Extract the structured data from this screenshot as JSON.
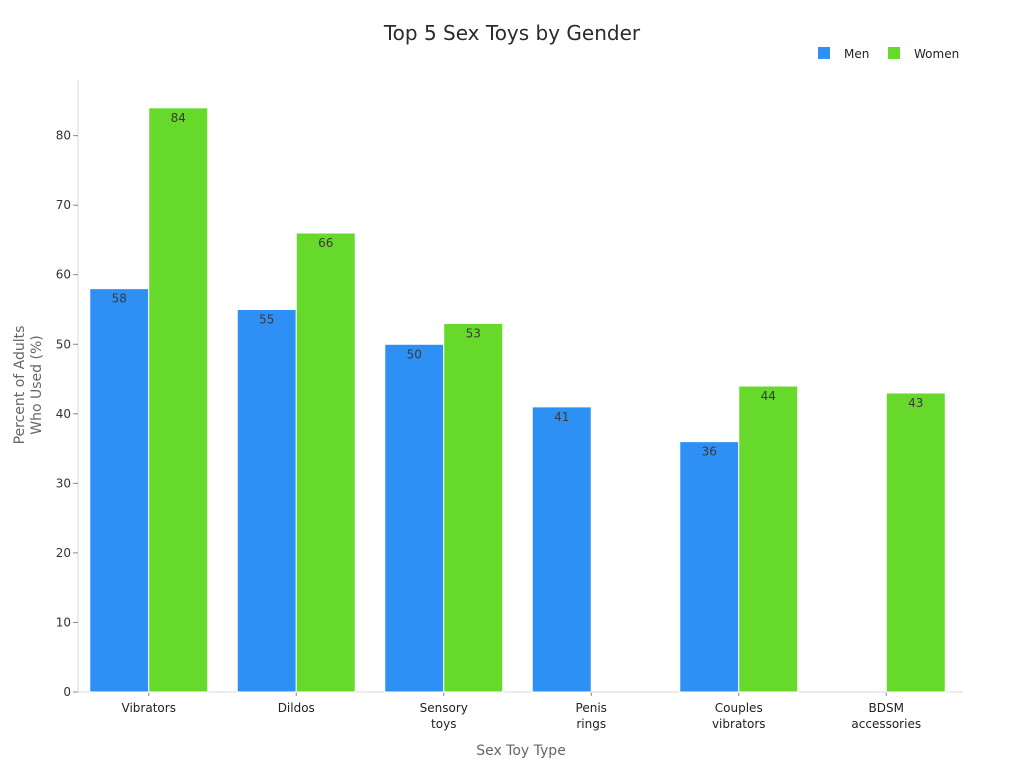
{
  "chart_data": {
    "type": "bar",
    "title": "Top 5 Sex Toys by Gender",
    "xlabel": "Sex Toy Type",
    "ylabel": "Percent of Adults\nWho Used (%)",
    "categories": [
      "Vibrators",
      "Dildos",
      "Sensory\ntoys",
      "Penis\nrings",
      "Couples\nvibrators",
      "BDSM\naccessories"
    ],
    "series": [
      {
        "name": "Men",
        "color": "#2e90f5",
        "values": [
          58,
          55,
          50,
          41,
          36,
          null
        ]
      },
      {
        "name": "Women",
        "color": "#66d92a",
        "values": [
          84,
          66,
          53,
          null,
          44,
          43
        ]
      }
    ],
    "ylim": [
      0,
      88
    ],
    "yticks": [
      0,
      10,
      20,
      30,
      40,
      50,
      60,
      70,
      80
    ],
    "legend_position": "top-right",
    "grid": false,
    "data_labels": true
  }
}
